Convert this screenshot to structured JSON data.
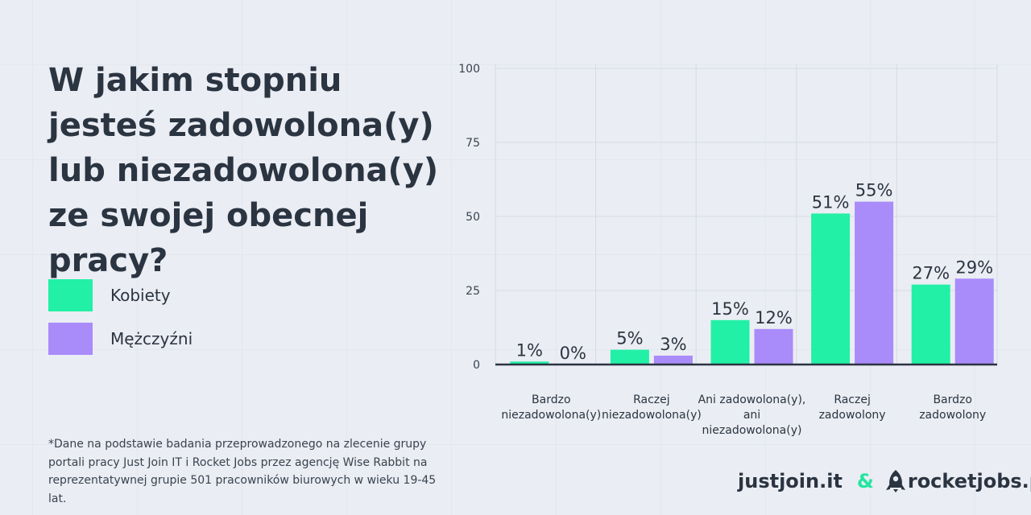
{
  "title": "W jakim stopniu jesteś zadowolona(y) lub niezadowolona(y) ze swojej obecnej pracy?",
  "legend": [
    {
      "label": "Kobiety",
      "color": "#22f0a6"
    },
    {
      "label": "Mężczyźni",
      "color": "#a98bfa"
    }
  ],
  "footnote": "*Dane na podstawie badania przeprowadzonego na zlecenie grupy portali pracy Just Join IT i Rocket Jobs przez agencję Wise Rabbit na reprezentatywnej grupie 501 pracowników biurowych w wieku 19-45 lat.",
  "brand": {
    "justjoin": "justjoin.it",
    "amp": "&",
    "rocketjobs": "rocketjobs.pl",
    "rocket_icon": "rocket-icon"
  },
  "chart_data": {
    "type": "bar",
    "categories": [
      [
        "Bardzo",
        "niezadowolona(y)"
      ],
      [
        "Raczej",
        "niezadowolona(y)"
      ],
      [
        "Ani zadowolona(y),",
        "ani",
        "niezadowolona(y)"
      ],
      [
        "Raczej",
        "zadowolony"
      ],
      [
        "Bardzo",
        "zadowolony"
      ]
    ],
    "series": [
      {
        "name": "Kobiety",
        "values": [
          1,
          5,
          15,
          51,
          27
        ],
        "labels": [
          "1%",
          "5%",
          "15%",
          "51%",
          "27%"
        ],
        "color": "#22f0a6"
      },
      {
        "name": "Mężczyźni",
        "values": [
          0,
          3,
          12,
          55,
          29
        ],
        "labels": [
          "0%",
          "3%",
          "12%",
          "55%",
          "29%"
        ],
        "color": "#a98bfa"
      }
    ],
    "ylim": [
      0,
      100
    ],
    "yticks": [
      "0",
      "25",
      "50",
      "75",
      "100"
    ],
    "grid": true
  }
}
